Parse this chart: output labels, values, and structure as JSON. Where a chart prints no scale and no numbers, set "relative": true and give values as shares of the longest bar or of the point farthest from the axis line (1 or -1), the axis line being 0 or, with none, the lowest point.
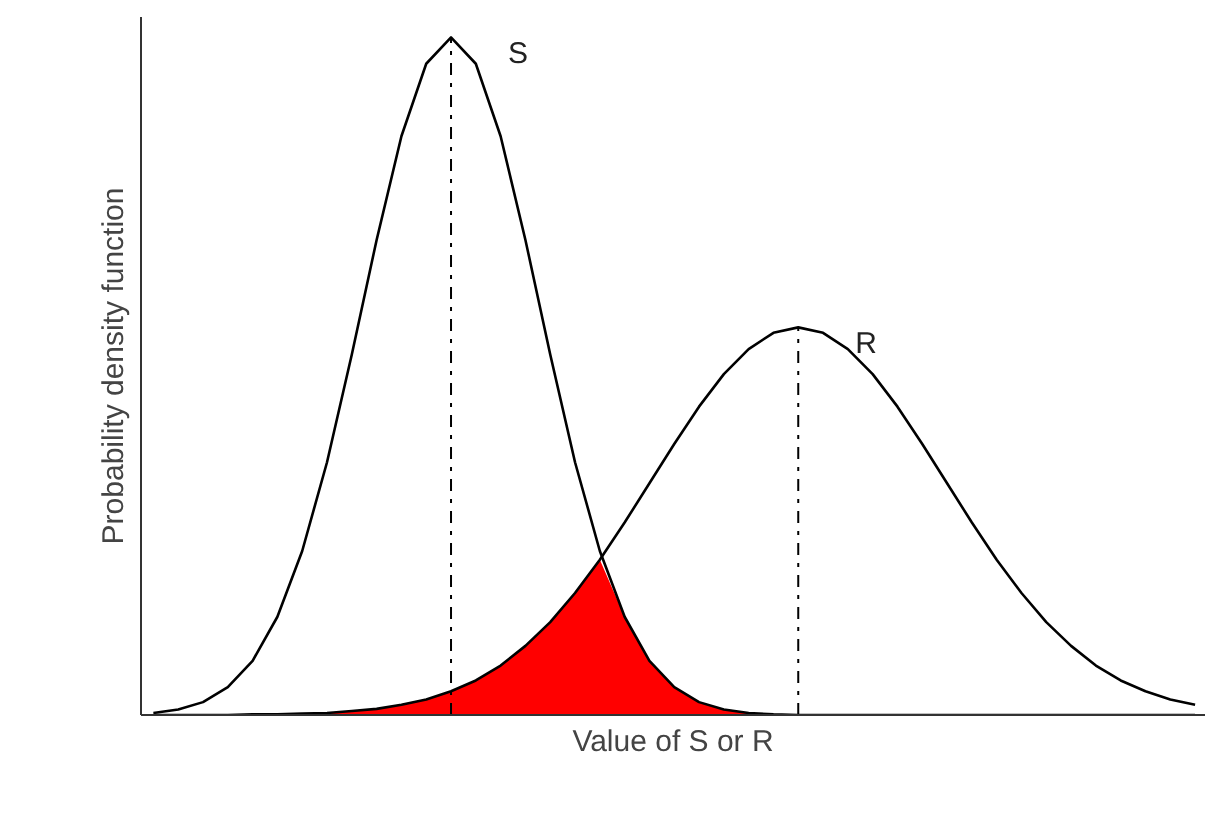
{
  "chart_data": {
    "type": "line",
    "relative": true,
    "xlabel": "Value of S or R",
    "ylabel": "Probability density function",
    "marker": "none",
    "line_style": "solid",
    "categories": [
      null,
      null,
      null,
      null,
      null,
      null,
      null,
      null,
      null,
      null,
      null,
      null,
      null,
      null,
      null,
      null,
      null,
      null,
      null,
      null,
      null,
      null,
      null,
      null,
      null,
      null,
      null,
      null,
      null,
      null,
      null,
      null,
      null,
      null,
      null,
      null,
      null,
      null,
      null,
      null,
      null,
      null,
      null
    ],
    "series": [
      {
        "name": "S",
        "color": "#000000",
        "values": [
          0.003,
          0.008,
          0.019,
          0.041,
          0.08,
          0.145,
          0.242,
          0.373,
          0.532,
          0.701,
          0.854,
          0.961,
          1,
          0.961,
          0.854,
          0.701,
          0.532,
          0.373,
          0.242,
          0.145,
          0.08,
          0.041,
          0.019,
          0.008,
          0.003,
          0.001,
          0,
          0,
          0,
          0,
          0,
          0,
          0,
          0,
          0,
          0,
          0,
          0,
          0,
          0,
          0,
          0,
          0
        ]
      },
      {
        "name": "R",
        "color": "#000000",
        "values": [
          0,
          0,
          0,
          0,
          0.001,
          0.001,
          0.002,
          0.003,
          0.006,
          0.009,
          0.015,
          0.023,
          0.035,
          0.051,
          0.073,
          0.102,
          0.137,
          0.18,
          0.229,
          0.284,
          0.342,
          0.4,
          0.455,
          0.503,
          0.54,
          0.564,
          0.572,
          0.564,
          0.54,
          0.503,
          0.455,
          0.4,
          0.342,
          0.284,
          0.229,
          0.18,
          0.137,
          0.102,
          0.073,
          0.051,
          0.035,
          0.023,
          0.015
        ]
      },
      {
        "type": "area",
        "color": "#ff0000",
        "values": [
          0,
          0,
          0,
          0,
          0.001,
          0.001,
          0.002,
          0.003,
          0.006,
          0.009,
          0.015,
          0.023,
          0.035,
          0.051,
          0.073,
          0.102,
          0.137,
          0.18,
          0.229,
          0.145,
          0.08,
          0.041,
          0.019,
          0.008,
          0.003,
          0.001,
          0,
          0,
          0,
          0,
          0,
          0,
          0,
          0,
          0,
          0,
          0,
          0,
          0,
          0,
          0,
          0,
          0
        ]
      }
    ]
  }
}
